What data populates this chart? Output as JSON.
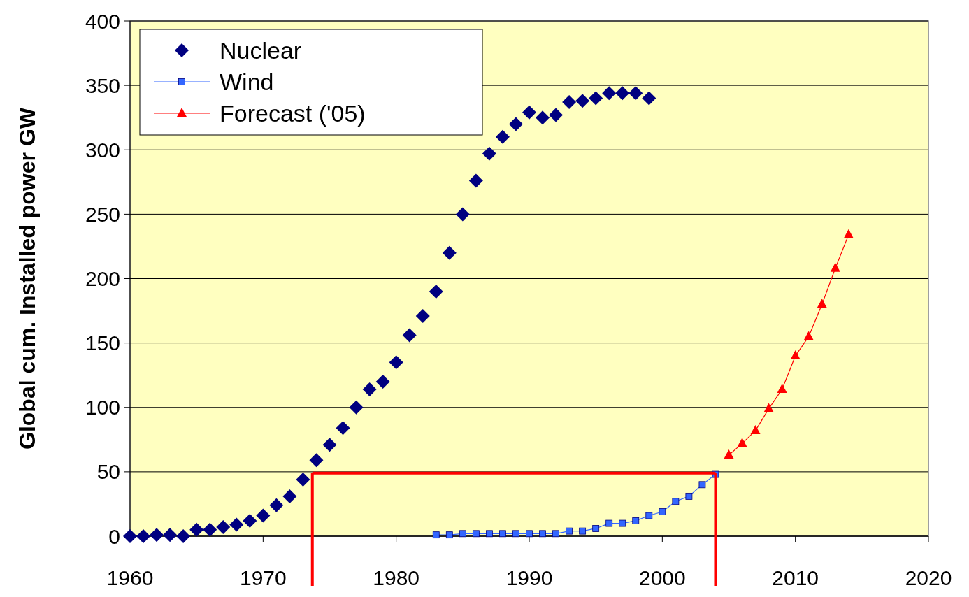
{
  "chart_data": {
    "type": "line",
    "ylabel": "Global cum. Installed power GW",
    "xlim": [
      1960,
      2020
    ],
    "xticks": [
      1960,
      1970,
      1980,
      1990,
      2000,
      2010,
      2020
    ],
    "ylim": [
      0,
      400
    ],
    "yticks": [
      0,
      50,
      100,
      150,
      200,
      250,
      300,
      350,
      400
    ],
    "grid": "y",
    "legend": "top left",
    "series": [
      {
        "name": "Nuclear",
        "type": "scatter",
        "marker": "diamond",
        "color": "#000080",
        "x": [
          1960,
          1961,
          1962,
          1963,
          1964,
          1965,
          1966,
          1967,
          1968,
          1969,
          1970,
          1971,
          1972,
          1973,
          1974,
          1975,
          1976,
          1977,
          1978,
          1979,
          1980,
          1981,
          1982,
          1983,
          1984,
          1985,
          1986,
          1987,
          1988,
          1989,
          1990,
          1991,
          1992,
          1993,
          1994,
          1995,
          1996,
          1997,
          1998,
          1999
        ],
        "values": [
          0,
          0,
          1,
          1,
          0,
          5,
          5,
          7,
          9,
          12,
          16,
          24,
          31,
          44,
          59,
          71,
          84,
          100,
          114,
          120,
          135,
          156,
          171,
          190,
          220,
          250,
          276,
          297,
          310,
          320,
          329,
          325,
          327,
          337,
          338,
          340,
          344,
          344,
          344,
          340
        ]
      },
      {
        "name": "Wind",
        "marker": "square",
        "color": "#3366ff",
        "x": [
          1983,
          1984,
          1985,
          1986,
          1987,
          1988,
          1989,
          1990,
          1991,
          1992,
          1993,
          1994,
          1995,
          1996,
          1997,
          1998,
          1999,
          2000,
          2001,
          2002,
          2003,
          2004
        ],
        "values": [
          1,
          1,
          2,
          2,
          2,
          2,
          2,
          2,
          2,
          2,
          4,
          4,
          6,
          10,
          10,
          12,
          16,
          19,
          27,
          31,
          40,
          48
        ]
      },
      {
        "name": "Forecast ('05)",
        "marker": "triangle",
        "color": "#ff0000",
        "x": [
          2005,
          2006,
          2007,
          2008,
          2009,
          2010,
          2011,
          2012,
          2013,
          2014
        ],
        "values": [
          63,
          72,
          82,
          99,
          114,
          140,
          155,
          180,
          208,
          234
        ]
      },
      {
        "marker": "none",
        "color": "#ff0000",
        "x": [
          1973.7,
          2004
        ],
        "values": [
          49,
          49
        ]
      }
    ],
    "ref_lines": [
      {
        "axis": "x",
        "value": 1973.7,
        "color": "#ff0000"
      },
      {
        "axis": "x",
        "value": 2004,
        "color": "#ff0000"
      }
    ]
  }
}
